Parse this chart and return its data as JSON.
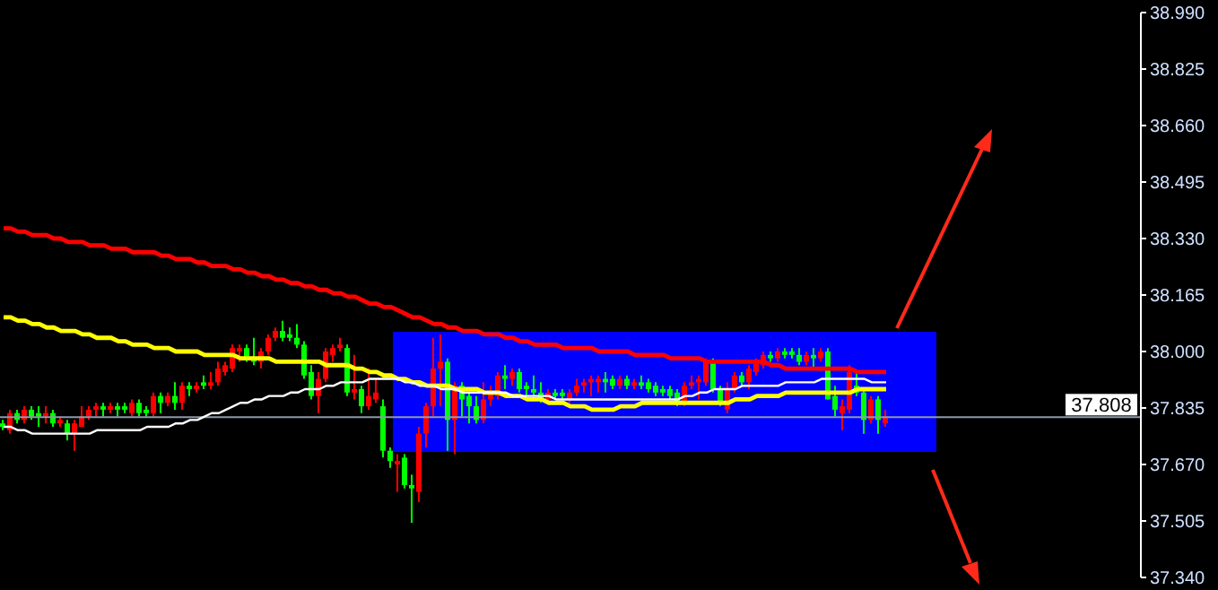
{
  "chart_data": {
    "type": "candlestick",
    "categories": [
      null,
      null,
      null,
      null,
      null,
      null,
      null,
      null,
      null,
      null,
      null,
      null,
      null,
      null,
      null,
      null,
      null,
      null,
      null,
      null,
      null,
      null,
      null,
      null,
      null,
      null,
      null,
      null,
      null,
      null,
      null,
      null,
      null,
      null,
      null,
      null,
      null,
      null,
      null,
      null,
      null,
      null,
      null,
      null,
      null,
      null,
      null,
      null,
      null,
      null,
      null,
      null,
      null,
      null,
      null,
      null,
      null,
      null,
      null,
      null,
      null,
      null,
      null,
      null,
      null,
      null,
      null,
      null,
      null,
      null,
      null,
      null,
      null,
      null,
      null,
      null,
      null,
      null,
      null,
      null,
      null,
      null,
      null,
      null,
      null,
      null,
      null,
      null,
      null,
      null,
      null,
      null,
      null,
      null,
      null,
      null,
      null,
      null,
      null,
      null,
      null,
      null,
      null,
      null,
      null,
      null,
      null,
      null,
      null,
      null,
      null,
      null,
      null,
      null,
      null,
      null,
      null,
      null,
      null,
      null,
      null,
      null,
      null,
      null
    ],
    "ohlc": [
      [
        37.78,
        37.8,
        37.77,
        37.79
      ],
      [
        37.82,
        37.83,
        37.76,
        37.77
      ],
      [
        37.8,
        37.83,
        37.79,
        37.82
      ],
      [
        37.83,
        37.84,
        37.79,
        37.8
      ],
      [
        37.81,
        37.84,
        37.8,
        37.83
      ],
      [
        37.81,
        37.84,
        37.78,
        37.82
      ],
      [
        37.82,
        37.84,
        37.79,
        37.81
      ],
      [
        37.79,
        37.83,
        37.78,
        37.82
      ],
      [
        37.8,
        37.81,
        37.78,
        37.79
      ],
      [
        37.76,
        37.8,
        37.74,
        37.79
      ],
      [
        37.79,
        37.8,
        37.71,
        37.76
      ],
      [
        37.81,
        37.84,
        37.78,
        37.78
      ],
      [
        37.83,
        37.84,
        37.8,
        37.81
      ],
      [
        37.84,
        37.85,
        37.81,
        37.83
      ],
      [
        37.83,
        37.85,
        37.81,
        37.84
      ],
      [
        37.84,
        37.85,
        37.82,
        37.83
      ],
      [
        37.83,
        37.85,
        37.81,
        37.84
      ],
      [
        37.83,
        37.85,
        37.82,
        37.84
      ],
      [
        37.85,
        37.86,
        37.81,
        37.82
      ],
      [
        37.82,
        37.86,
        37.81,
        37.85
      ],
      [
        37.82,
        37.84,
        37.81,
        37.83
      ],
      [
        37.87,
        37.88,
        37.81,
        37.82
      ],
      [
        37.85,
        37.88,
        37.82,
        37.87
      ],
      [
        37.87,
        37.88,
        37.84,
        37.85
      ],
      [
        37.85,
        37.91,
        37.83,
        37.87
      ],
      [
        37.9,
        37.91,
        37.83,
        37.85
      ],
      [
        37.89,
        37.91,
        37.87,
        37.9
      ],
      [
        37.9,
        37.91,
        37.88,
        37.89
      ],
      [
        37.9,
        37.93,
        37.89,
        37.91
      ],
      [
        37.91,
        37.94,
        37.89,
        37.9
      ],
      [
        37.95,
        37.97,
        37.9,
        37.91
      ],
      [
        37.96,
        37.97,
        37.93,
        37.94
      ],
      [
        38.01,
        38.02,
        37.94,
        37.95
      ],
      [
        38.01,
        38.02,
        37.97,
        38.0
      ],
      [
        37.98,
        38.02,
        37.97,
        38.01
      ],
      [
        37.97,
        38.04,
        37.96,
        37.98
      ],
      [
        38.0,
        38.01,
        37.95,
        37.97
      ],
      [
        38.04,
        38.05,
        37.99,
        38.0
      ],
      [
        38.06,
        38.07,
        38.03,
        38.04
      ],
      [
        38.04,
        38.09,
        38.03,
        38.06
      ],
      [
        38.04,
        38.07,
        38.03,
        38.05
      ],
      [
        38.02,
        38.08,
        38.01,
        38.04
      ],
      [
        37.93,
        38.03,
        37.92,
        38.02
      ],
      [
        37.87,
        37.96,
        37.86,
        37.94
      ],
      [
        37.92,
        37.94,
        37.82,
        37.87
      ],
      [
        38.0,
        38.01,
        37.91,
        37.92
      ],
      [
        38.01,
        38.02,
        37.97,
        37.99
      ],
      [
        38.02,
        38.04,
        38.0,
        38.01
      ],
      [
        37.88,
        38.02,
        37.87,
        38.01
      ],
      [
        37.89,
        37.99,
        37.86,
        37.88
      ],
      [
        37.84,
        37.9,
        37.82,
        37.89
      ],
      [
        37.87,
        37.95,
        37.83,
        37.84
      ],
      [
        37.88,
        37.92,
        37.85,
        37.86
      ],
      [
        37.71,
        37.86,
        37.69,
        37.84
      ],
      [
        37.68,
        37.72,
        37.66,
        37.71
      ],
      [
        37.68,
        37.7,
        37.59,
        37.67
      ],
      [
        37.61,
        37.7,
        37.6,
        37.69
      ],
      [
        37.6,
        37.64,
        37.5,
        37.61
      ],
      [
        37.76,
        37.78,
        37.56,
        37.59
      ],
      [
        37.84,
        37.85,
        37.72,
        37.76
      ],
      [
        37.95,
        38.04,
        37.81,
        37.84
      ],
      [
        37.97,
        38.05,
        37.84,
        37.95
      ],
      [
        37.8,
        37.98,
        37.71,
        37.97
      ],
      [
        37.9,
        37.91,
        37.7,
        37.8
      ],
      [
        37.86,
        37.91,
        37.81,
        37.9
      ],
      [
        37.84,
        37.88,
        37.79,
        37.87
      ],
      [
        37.8,
        37.87,
        37.79,
        37.84
      ],
      [
        37.86,
        37.91,
        37.79,
        37.8
      ],
      [
        37.88,
        37.9,
        37.84,
        37.86
      ],
      [
        37.93,
        37.94,
        37.86,
        37.87
      ],
      [
        37.92,
        37.96,
        37.89,
        37.93
      ],
      [
        37.94,
        37.95,
        37.9,
        37.92
      ],
      [
        37.89,
        37.95,
        37.88,
        37.94
      ],
      [
        37.89,
        37.91,
        37.87,
        37.9
      ],
      [
        37.88,
        37.93,
        37.87,
        37.89
      ],
      [
        37.86,
        37.91,
        37.85,
        37.88
      ],
      [
        37.88,
        37.89,
        37.85,
        37.86
      ],
      [
        37.87,
        37.89,
        37.86,
        37.88
      ],
      [
        37.87,
        37.89,
        37.86,
        37.88
      ],
      [
        37.88,
        37.89,
        37.85,
        37.86
      ],
      [
        37.9,
        37.92,
        37.87,
        37.88
      ],
      [
        37.91,
        37.92,
        37.88,
        37.9
      ],
      [
        37.92,
        37.93,
        37.87,
        37.91
      ],
      [
        37.92,
        37.93,
        37.88,
        37.91
      ],
      [
        37.91,
        37.94,
        37.88,
        37.92
      ],
      [
        37.9,
        37.93,
        37.89,
        37.92
      ],
      [
        37.92,
        37.93,
        37.89,
        37.9
      ],
      [
        37.9,
        37.93,
        37.89,
        37.92
      ],
      [
        37.91,
        37.92,
        37.89,
        37.9
      ],
      [
        37.9,
        37.93,
        37.89,
        37.91
      ],
      [
        37.89,
        37.92,
        37.88,
        37.91
      ],
      [
        37.88,
        37.91,
        37.87,
        37.9
      ],
      [
        37.88,
        37.9,
        37.87,
        37.89
      ],
      [
        37.87,
        37.9,
        37.86,
        37.89
      ],
      [
        37.85,
        37.89,
        37.84,
        37.88
      ],
      [
        37.9,
        37.91,
        37.84,
        37.85
      ],
      [
        37.91,
        37.93,
        37.89,
        37.9
      ],
      [
        37.92,
        37.93,
        37.86,
        37.91
      ],
      [
        37.97,
        37.98,
        37.9,
        37.91
      ],
      [
        37.89,
        37.98,
        37.88,
        37.97
      ],
      [
        37.85,
        37.9,
        37.84,
        37.89
      ],
      [
        37.89,
        37.91,
        37.82,
        37.83
      ],
      [
        37.93,
        37.94,
        37.88,
        37.89
      ],
      [
        37.91,
        37.94,
        37.9,
        37.93
      ],
      [
        37.95,
        37.96,
        37.89,
        37.91
      ],
      [
        37.97,
        37.98,
        37.93,
        37.94
      ],
      [
        37.99,
        38.0,
        37.95,
        37.96
      ],
      [
        37.98,
        38.0,
        37.97,
        37.99
      ],
      [
        38.0,
        38.01,
        37.97,
        37.98
      ],
      [
        37.99,
        38.01,
        37.98,
        38.0
      ],
      [
        37.99,
        38.01,
        37.98,
        38.0
      ],
      [
        37.97,
        38.01,
        37.96,
        37.99
      ],
      [
        37.99,
        38.0,
        37.96,
        37.97
      ],
      [
        37.98,
        38.01,
        37.95,
        37.99
      ],
      [
        38.0,
        38.01,
        37.97,
        37.98
      ],
      [
        37.86,
        38.01,
        37.86,
        38.0
      ],
      [
        37.83,
        37.9,
        37.81,
        37.87
      ],
      [
        37.84,
        37.86,
        37.77,
        37.82
      ],
      [
        37.94,
        37.96,
        37.82,
        37.83
      ],
      [
        37.88,
        37.94,
        37.87,
        37.9
      ],
      [
        37.8,
        37.89,
        37.76,
        37.88
      ],
      [
        37.86,
        37.87,
        37.79,
        37.8
      ],
      [
        37.8,
        37.87,
        37.76,
        37.86
      ],
      [
        37.81,
        37.83,
        37.78,
        37.79
      ]
    ],
    "colors": [
      "#00ff00",
      "#ff0000",
      "#00ff00",
      "#ff0000",
      "#00ff00",
      "#00ff00",
      "#ff0000",
      "#00ff00",
      "#ff0000",
      "#00ff00",
      "#ff0000",
      "#ff0000",
      "#ff0000",
      "#ff0000",
      "#00ff00",
      "#ff0000",
      "#00ff00",
      "#00ff00",
      "#ff0000",
      "#00ff00",
      "#00ff00",
      "#ff0000",
      "#00ff00",
      "#ff0000",
      "#00ff00",
      "#ff0000",
      "#00ff00",
      "#ff0000",
      "#00ff00",
      "#ff0000",
      "#ff0000",
      "#ff0000",
      "#ff0000",
      "#ff0000",
      "#00ff00",
      "#00ff00",
      "#ff0000",
      "#ff0000",
      "#ff0000",
      "#00ff00",
      "#00ff00",
      "#00ff00",
      "#00ff00",
      "#00ff00",
      "#ff0000",
      "#ff0000",
      "#ff0000",
      "#ff0000",
      "#00ff00",
      "#ff0000",
      "#00ff00",
      "#ff0000",
      "#ff0000",
      "#00ff00",
      "#00ff00",
      "#ff0000",
      "#00ff00",
      "#00ff00",
      "#ff0000",
      "#ff0000",
      "#ff0000",
      "#ff0000",
      "#00ff00",
      "#ff0000",
      "#00ff00",
      "#00ff00",
      "#00ff00",
      "#ff0000",
      "#ff0000",
      "#ff0000",
      "#00ff00",
      "#ff0000",
      "#00ff00",
      "#00ff00",
      "#00ff00",
      "#00ff00",
      "#ff0000",
      "#00ff00",
      "#00ff00",
      "#ff0000",
      "#ff0000",
      "#ff0000",
      "#ff0000",
      "#ff0000",
      "#00ff00",
      "#00ff00",
      "#ff0000",
      "#00ff00",
      "#ff0000",
      "#00ff00",
      "#00ff00",
      "#00ff00",
      "#00ff00",
      "#00ff00",
      "#00ff00",
      "#ff0000",
      "#ff0000",
      "#ff0000",
      "#ff0000",
      "#00ff00",
      "#00ff00",
      "#ff0000",
      "#ff0000",
      "#00ff00",
      "#ff0000",
      "#ff0000",
      "#ff0000",
      "#00ff00",
      "#ff0000",
      "#00ff00",
      "#00ff00",
      "#00ff00",
      "#ff0000",
      "#00ff00",
      "#ff0000",
      "#00ff00",
      "#00ff00",
      "#ff0000",
      "#ff0000",
      "#00ff00",
      "#00ff00",
      "#ff0000",
      "#00ff00",
      "#ff0000"
    ],
    "series": [
      {
        "type": "line",
        "color": "#ff0000",
        "values": [
          38.36,
          38.36,
          38.35,
          38.35,
          38.34,
          38.34,
          38.34,
          38.33,
          38.33,
          38.32,
          38.32,
          38.32,
          38.31,
          38.31,
          38.31,
          38.3,
          38.3,
          38.3,
          38.29,
          38.29,
          38.29,
          38.29,
          38.28,
          38.28,
          38.27,
          38.27,
          38.27,
          38.26,
          38.26,
          38.25,
          38.25,
          38.25,
          38.24,
          38.24,
          38.23,
          38.23,
          38.22,
          38.22,
          38.21,
          38.21,
          38.2,
          38.2,
          38.19,
          38.19,
          38.18,
          38.18,
          38.17,
          38.17,
          38.16,
          38.16,
          38.15,
          38.14,
          38.14,
          38.13,
          38.13,
          38.12,
          38.11,
          38.1,
          38.1,
          38.09,
          38.08,
          38.08,
          38.07,
          38.07,
          38.06,
          38.06,
          38.06,
          38.05,
          38.05,
          38.05,
          38.04,
          38.04,
          38.03,
          38.03,
          38.02,
          38.02,
          38.02,
          38.02,
          38.01,
          38.01,
          38.01,
          38.01,
          38.01,
          38.0,
          38.0,
          38.0,
          38.0,
          38.0,
          37.99,
          37.99,
          37.99,
          37.99,
          37.99,
          37.98,
          37.98,
          37.98,
          37.98,
          37.98,
          37.97,
          37.97,
          37.97,
          37.97,
          37.97,
          37.97,
          37.97,
          37.97,
          37.97,
          37.96,
          37.96,
          37.95,
          37.95,
          37.95,
          37.95,
          37.95,
          37.95,
          37.95,
          37.95,
          37.95,
          37.95,
          37.94,
          37.94,
          37.94,
          37.94,
          37.94
        ]
      },
      {
        "type": "line",
        "color": "#ffff00",
        "values": [
          38.1,
          38.1,
          38.09,
          38.09,
          38.08,
          38.08,
          38.07,
          38.07,
          38.06,
          38.06,
          38.06,
          38.05,
          38.05,
          38.04,
          38.04,
          38.04,
          38.03,
          38.03,
          38.02,
          38.02,
          38.02,
          38.01,
          38.01,
          38.01,
          38.0,
          38.0,
          38.0,
          38.0,
          37.99,
          37.99,
          37.99,
          37.99,
          37.99,
          37.98,
          37.98,
          37.98,
          37.98,
          37.98,
          37.97,
          37.97,
          37.97,
          37.97,
          37.97,
          37.97,
          37.97,
          37.96,
          37.96,
          37.96,
          37.96,
          37.95,
          37.95,
          37.94,
          37.94,
          37.93,
          37.93,
          37.92,
          37.92,
          37.91,
          37.91,
          37.9,
          37.9,
          37.9,
          37.9,
          37.89,
          37.89,
          37.89,
          37.89,
          37.88,
          37.88,
          37.88,
          37.87,
          37.87,
          37.87,
          37.86,
          37.86,
          37.86,
          37.85,
          37.85,
          37.85,
          37.84,
          37.84,
          37.84,
          37.83,
          37.83,
          37.83,
          37.83,
          37.84,
          37.84,
          37.84,
          37.85,
          37.85,
          37.85,
          37.85,
          37.85,
          37.85,
          37.85,
          37.85,
          37.85,
          37.85,
          37.85,
          37.85,
          37.85,
          37.86,
          37.86,
          37.86,
          37.87,
          37.87,
          37.87,
          37.87,
          37.88,
          37.88,
          37.88,
          37.88,
          37.88,
          37.88,
          37.88,
          37.88,
          37.88,
          37.88,
          37.89,
          37.89,
          37.89,
          37.89,
          37.89
        ]
      },
      {
        "type": "line",
        "color": "#ffffff",
        "values": [
          37.78,
          37.78,
          37.77,
          37.77,
          37.76,
          37.76,
          37.76,
          37.76,
          37.76,
          37.76,
          37.76,
          37.76,
          37.76,
          37.77,
          37.77,
          37.77,
          37.77,
          37.77,
          37.77,
          37.77,
          37.78,
          37.78,
          37.78,
          37.78,
          37.79,
          37.79,
          37.8,
          37.8,
          37.81,
          37.82,
          37.82,
          37.83,
          37.84,
          37.85,
          37.85,
          37.86,
          37.86,
          37.87,
          37.87,
          37.87,
          37.88,
          37.88,
          37.89,
          37.89,
          37.89,
          37.9,
          37.9,
          37.91,
          37.91,
          37.91,
          37.91,
          37.92,
          37.92,
          37.92,
          37.92,
          37.92,
          37.91,
          37.91,
          37.9,
          37.9,
          37.9,
          37.89,
          37.89,
          37.89,
          37.88,
          37.88,
          37.88,
          37.88,
          37.88,
          37.88,
          37.88,
          37.87,
          37.87,
          37.87,
          37.87,
          37.87,
          37.87,
          37.86,
          37.86,
          37.86,
          37.86,
          37.86,
          37.86,
          37.86,
          37.86,
          37.86,
          37.86,
          37.86,
          37.86,
          37.86,
          37.86,
          37.86,
          37.86,
          37.86,
          37.86,
          37.87,
          37.87,
          37.88,
          37.88,
          37.89,
          37.89,
          37.89,
          37.89,
          37.9,
          37.9,
          37.9,
          37.9,
          37.9,
          37.9,
          37.91,
          37.91,
          37.91,
          37.91,
          37.91,
          37.92,
          37.92,
          37.92,
          37.92,
          37.92,
          37.92,
          37.92,
          37.91,
          37.91,
          37.91
        ]
      }
    ],
    "ylim": [
      37.34,
      38.99
    ],
    "yticks": [
      {
        "value": 37.34,
        "label": "37.340"
      },
      37.505,
      {
        "value": 37.67,
        "label": "37.670"
      },
      37.835,
      {
        "value": 38.0,
        "label": "38.000"
      },
      38.165,
      {
        "value": 38.33,
        "label": "38.330"
      },
      38.495,
      {
        "value": 38.66,
        "label": "38.660"
      },
      38.825,
      {
        "value": 38.99,
        "label": "38.990"
      }
    ],
    "tick_labels": "y",
    "ref_lines": [
      {
        "axis": "y",
        "value": 37.808,
        "label": "37.808",
        "color": "#8c9aa8"
      }
    ]
  }
}
